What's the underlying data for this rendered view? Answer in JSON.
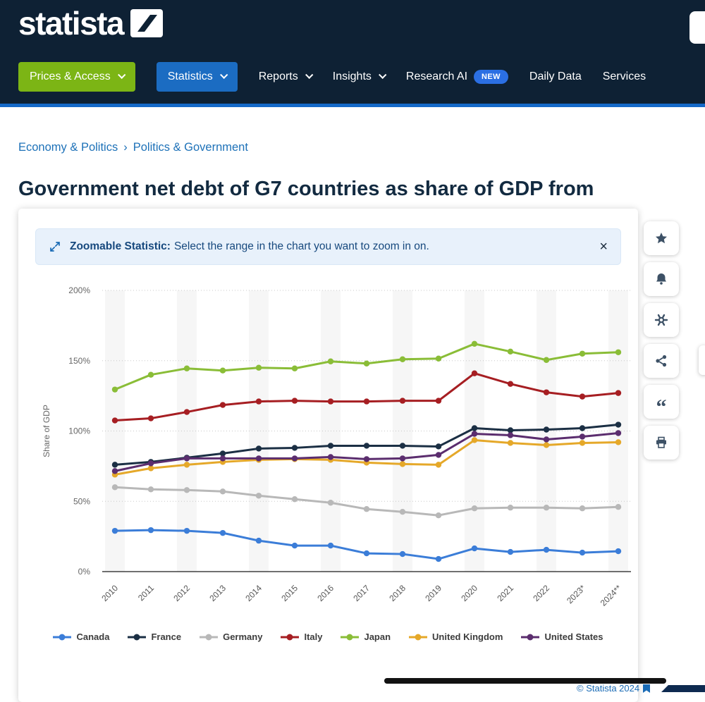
{
  "header": {
    "logo_text": "statista",
    "nav": {
      "prices_access": "Prices & Access",
      "statistics": "Statistics",
      "reports": "Reports",
      "insights": "Insights",
      "research_ai": "Research AI",
      "new_badge": "NEW",
      "daily_data": "Daily Data",
      "services": "Services"
    }
  },
  "breadcrumb": {
    "parent": "Economy & Politics",
    "separator": "›",
    "current": "Politics & Government"
  },
  "page_title": "Government net debt of G7 countries as share of GDP from",
  "zoom_banner": {
    "bold_text": "Zoomable Statistic:",
    "text": "Select the range in the chart you want to zoom in on.",
    "close": "×"
  },
  "side_toolbar": {
    "citation_glyph": "“"
  },
  "chart_data": {
    "type": "line",
    "title": "",
    "ylabel": "Share of GDP",
    "ylim": [
      0,
      200
    ],
    "yticks": [
      0,
      50,
      100,
      150,
      200
    ],
    "ytick_labels": [
      "0%",
      "50%",
      "100%",
      "150%",
      "200%"
    ],
    "grid": "dotted-horizontal",
    "legend_position": "bottom",
    "x": [
      "2010",
      "2011",
      "2012",
      "2013",
      "2014",
      "2015",
      "2016",
      "2017",
      "2018",
      "2019",
      "2020",
      "2021",
      "2022",
      "2023*",
      "2024**"
    ],
    "series": [
      {
        "name": "Canada",
        "color": "#3b7dd8",
        "values": [
          29,
          29.5,
          29,
          27.5,
          22,
          18.5,
          18.5,
          13,
          12.5,
          9,
          16.5,
          14,
          15.5,
          13.5,
          14.5
        ]
      },
      {
        "name": "France",
        "color": "#1b2f44",
        "values": [
          76,
          78,
          81,
          84,
          87.5,
          88,
          89.5,
          89.5,
          89.5,
          89,
          102,
          100.5,
          101,
          102,
          104.5
        ]
      },
      {
        "name": "Germany",
        "color": "#b8b8b8",
        "values": [
          60,
          58.5,
          58,
          57,
          54,
          51.5,
          49,
          44.5,
          42.5,
          40,
          45,
          45.5,
          45.5,
          45,
          46
        ]
      },
      {
        "name": "Italy",
        "color": "#a61e22",
        "values": [
          107.5,
          109,
          113.5,
          118.5,
          121,
          121.5,
          121,
          121,
          121.5,
          121.5,
          141,
          133.5,
          127.5,
          124.5,
          127
        ]
      },
      {
        "name": "Japan",
        "color": "#8abd37",
        "values": [
          129.5,
          140,
          144.5,
          143,
          145,
          144.5,
          149.5,
          148,
          151,
          151.5,
          162,
          156.5,
          150.5,
          155,
          156
        ]
      },
      {
        "name": "United Kingdom",
        "color": "#e5a829",
        "values": [
          69,
          73.5,
          76,
          78,
          79.5,
          80,
          79.5,
          77.5,
          76.5,
          76,
          93.5,
          91.5,
          90,
          91.5,
          92
        ]
      },
      {
        "name": "United States",
        "color": "#5b2d6e",
        "values": [
          71.5,
          77,
          80.5,
          80.5,
          80.5,
          80.5,
          81.5,
          80,
          80.5,
          83,
          98,
          97,
          94,
          96,
          98.5
        ]
      }
    ]
  },
  "footer": {
    "copyright": "© Statista 2024"
  }
}
